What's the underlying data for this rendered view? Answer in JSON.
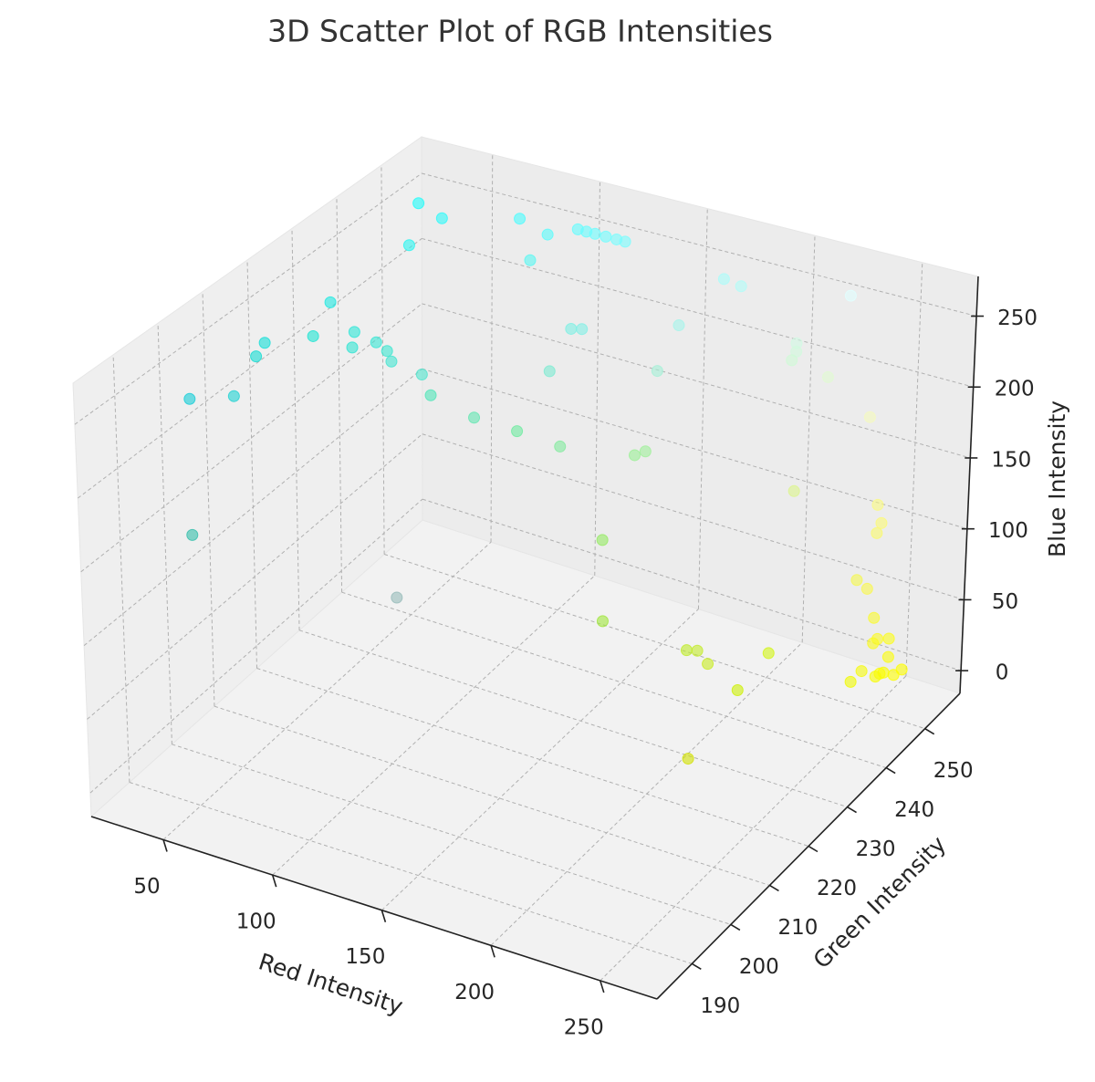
{
  "chart_data": {
    "type": "scatter3d",
    "title": "3D Scatter Plot of RGB Intensities",
    "x_label": "Red Intensity",
    "y_label": "Green Intensity",
    "z_label": "Blue Intensity",
    "xlim": [
      17,
      276
    ],
    "ylim": [
      181,
      259
    ],
    "zlim": [
      -16,
      278
    ],
    "xticks": [
      50,
      100,
      150,
      200,
      250
    ],
    "yticks": [
      190,
      200,
      210,
      220,
      230,
      240,
      250
    ],
    "zticks": [
      0,
      50,
      100,
      150,
      200,
      250
    ],
    "grid": true,
    "x": [
      30,
      45,
      75,
      90,
      100,
      104,
      108,
      113,
      118,
      122,
      90,
      40,
      170,
      178,
      225,
      165,
      130,
      125,
      30,
      45,
      55,
      60,
      30,
      48,
      66,
      80,
      20,
      20,
      125,
      165,
      210,
      210,
      208,
      225,
      245,
      30,
      20,
      80,
      100,
      110,
      130,
      155,
      160,
      220,
      250,
      252,
      250,
      150,
      245,
      250,
      160,
      190,
      195,
      200,
      250,
      252,
      250,
      210,
      252,
      245,
      252,
      250,
      255,
      253,
      250,
      248,
      240,
      205,
      210,
      50,
      150
    ],
    "y": [
      252,
      250,
      253,
      252,
      254,
      254,
      254,
      254,
      254,
      254,
      248,
      245,
      253,
      253,
      255,
      245,
      240,
      240,
      232,
      230,
      230,
      230,
      228,
      228,
      228,
      228,
      222,
      220,
      235,
      240,
      250,
      250,
      250,
      250,
      250,
      210,
      205,
      230,
      230,
      235,
      235,
      240,
      240,
      245,
      250,
      250,
      250,
      235,
      248,
      248,
      230,
      235,
      235,
      235,
      250,
      250,
      250,
      245,
      253,
      250,
      253,
      252,
      255,
      254,
      253,
      252,
      250,
      240,
      225,
      190,
      186
    ],
    "z": [
      250,
      250,
      255,
      252,
      255,
      255,
      255,
      255,
      255,
      255,
      243,
      240,
      250,
      248,
      255,
      235,
      230,
      228,
      225,
      215,
      212,
      208,
      210,
      210,
      208,
      205,
      215,
      210,
      210,
      215,
      228,
      222,
      215,
      210,
      190,
      210,
      215,
      185,
      178,
      160,
      158,
      150,
      155,
      140,
      130,
      118,
      110,
      100,
      80,
      76,
      60,
      40,
      42,
      35,
      50,
      36,
      32,
      20,
      28,
      10,
      15,
      5,
      2,
      0,
      3,
      2,
      0,
      5,
      0,
      170,
      185
    ]
  }
}
